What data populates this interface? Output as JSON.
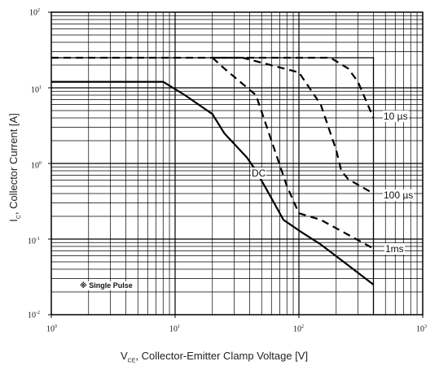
{
  "chart_data": {
    "type": "line",
    "xscale": "log",
    "yscale": "log",
    "xlim": [
      1,
      1000
    ],
    "ylim": [
      0.01,
      100
    ],
    "grid": true,
    "x_ticks": [
      {
        "base": "10",
        "exp": "0"
      },
      {
        "base": "10",
        "exp": "1"
      },
      {
        "base": "10",
        "exp": "2"
      },
      {
        "base": "10",
        "exp": "3"
      }
    ],
    "y_ticks": [
      {
        "base": "10",
        "exp": "-2"
      },
      {
        "base": "10",
        "exp": "-1"
      },
      {
        "base": "10",
        "exp": "0"
      },
      {
        "base": "10",
        "exp": "1"
      },
      {
        "base": "10",
        "exp": "2"
      }
    ],
    "xlabel": {
      "pre": "V",
      "sub": "CE",
      "post": ", Collector-Emitter Clamp Voltage [V]"
    },
    "ylabel": {
      "pre": "I",
      "sub": "C",
      "post": ", Collector Current [A]"
    },
    "series": [
      {
        "name": "10 µs",
        "style": "dashed",
        "x": [
          1,
          180,
          250,
          300,
          400
        ],
        "y": [
          25,
          25,
          18,
          12,
          4.0
        ]
      },
      {
        "name": "100 µs",
        "style": "dashed",
        "x": [
          22,
          35,
          100,
          150,
          200,
          220,
          250,
          400
        ],
        "y": [
          25,
          25,
          16,
          6,
          1.5,
          0.8,
          0.62,
          0.4
        ]
      },
      {
        "name": "1ms",
        "style": "dashed",
        "x": [
          20,
          25,
          45,
          60,
          80,
          100,
          150,
          400
        ],
        "y": [
          25,
          18,
          8,
          2.0,
          0.5,
          0.22,
          0.18,
          0.075
        ]
      },
      {
        "name": "DC",
        "style": "solid",
        "x": [
          1,
          8,
          12,
          20,
          25,
          38,
          45,
          55,
          75,
          100,
          150,
          250,
          400
        ],
        "y": [
          12,
          12,
          8,
          4.5,
          2.5,
          1.2,
          0.8,
          0.45,
          0.18,
          0.13,
          0.085,
          0.045,
          0.025
        ]
      }
    ],
    "limit_line": {
      "x": 400,
      "y": 25
    },
    "annotations": {
      "us10": "10 µs",
      "us100": "100 µs",
      "ms1": "1ms",
      "dc": "DC",
      "single_pulse": "※ Single Pulse"
    }
  }
}
